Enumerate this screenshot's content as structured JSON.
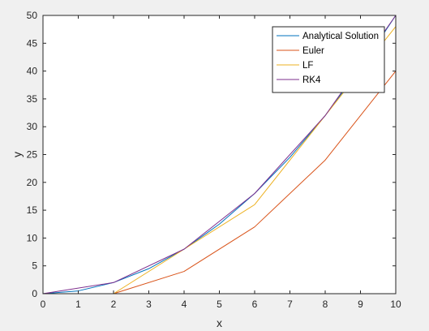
{
  "chart_data": {
    "type": "line",
    "xlabel": "x",
    "ylabel": "y",
    "xlim": [
      0,
      10
    ],
    "ylim": [
      0,
      50
    ],
    "xticks": [
      0,
      1,
      2,
      3,
      4,
      5,
      6,
      7,
      8,
      9,
      10
    ],
    "yticks": [
      0,
      5,
      10,
      15,
      20,
      25,
      30,
      35,
      40,
      45,
      50
    ],
    "grid": false,
    "legend_position": "top-right",
    "series": [
      {
        "name": "Analytical Solution",
        "color": "#0072BD",
        "x": [
          0,
          1,
          2,
          3,
          4,
          5,
          6,
          7,
          8,
          9,
          10
        ],
        "y": [
          0,
          0.5,
          2,
          4.5,
          8,
          12.5,
          18,
          24.5,
          32,
          40.5,
          50
        ]
      },
      {
        "name": "Euler",
        "color": "#D95319",
        "x": [
          0,
          2,
          4,
          6,
          8,
          10
        ],
        "y": [
          0,
          0,
          4,
          12,
          24,
          40
        ]
      },
      {
        "name": "LF",
        "color": "#EDB120",
        "x": [
          0,
          2,
          4,
          6,
          8,
          10
        ],
        "y": [
          0,
          0,
          8,
          16,
          32,
          48
        ]
      },
      {
        "name": "RK4",
        "color": "#7E2F8E",
        "x": [
          0,
          2,
          4,
          6,
          8,
          10
        ],
        "y": [
          0,
          2,
          8,
          18,
          32,
          50
        ]
      }
    ]
  }
}
